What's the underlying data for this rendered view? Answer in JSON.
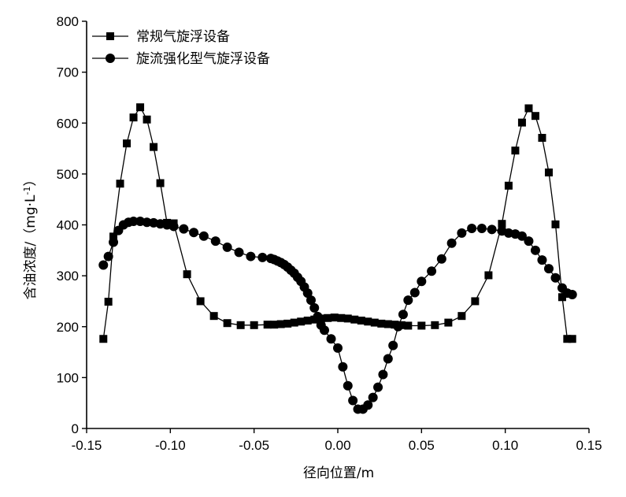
{
  "chart_data": {
    "type": "line",
    "xlabel": "径向位置/m",
    "ylabel": "含油浓度/（mg·L",
    "ylabel_sup": "-1",
    "ylabel_close": "）",
    "xlim": [
      -0.15,
      0.15
    ],
    "ylim": [
      0,
      800
    ],
    "x_ticks": [
      -0.15,
      -0.1,
      -0.05,
      0.0,
      0.05,
      0.1,
      0.15
    ],
    "x_tick_labels": [
      "-0.15",
      "-0.10",
      "-0.05",
      "0.00",
      "0.05",
      "0.10",
      "0.15"
    ],
    "y_ticks": [
      0,
      100,
      200,
      300,
      400,
      500,
      600,
      700,
      800
    ],
    "y_tick_labels": [
      "0",
      "100",
      "200",
      "300",
      "400",
      "500",
      "600",
      "700",
      "800"
    ],
    "grid": false,
    "legend_position": "top-left",
    "series": [
      {
        "name": "常规气旋浮设备",
        "marker": "square",
        "x": [
          -0.14,
          -0.137,
          -0.134,
          -0.13,
          -0.126,
          -0.122,
          -0.118,
          -0.114,
          -0.11,
          -0.106,
          -0.102,
          -0.098,
          -0.09,
          -0.082,
          -0.074,
          -0.066,
          -0.058,
          -0.05,
          -0.042,
          -0.038,
          -0.034,
          -0.03,
          -0.026,
          -0.022,
          -0.018,
          -0.014,
          -0.01,
          -0.006,
          -0.002,
          0.002,
          0.006,
          0.01,
          0.014,
          0.018,
          0.022,
          0.026,
          0.03,
          0.034,
          0.038,
          0.042,
          0.05,
          0.058,
          0.066,
          0.074,
          0.082,
          0.09,
          0.098,
          0.102,
          0.106,
          0.11,
          0.114,
          0.118,
          0.122,
          0.126,
          0.13,
          0.134,
          0.137,
          0.14
        ],
        "values": [
          176,
          249,
          377,
          481,
          560,
          611,
          631,
          607,
          553,
          482,
          404,
          403,
          303,
          250,
          221,
          207,
          203,
          203,
          204,
          204,
          205,
          206,
          208,
          210,
          212,
          214,
          216,
          217,
          218,
          217,
          216,
          214,
          212,
          210,
          208,
          206,
          205,
          204,
          203,
          202,
          202,
          203,
          208,
          221,
          250,
          301,
          402,
          477,
          546,
          601,
          629,
          614,
          571,
          503,
          401,
          258,
          176,
          176
        ]
      },
      {
        "name": "旋流强化型气旋浮设备",
        "marker": "circle",
        "x": [
          -0.14,
          -0.137,
          -0.134,
          -0.131,
          -0.128,
          -0.125,
          -0.122,
          -0.118,
          -0.114,
          -0.11,
          -0.106,
          -0.102,
          -0.098,
          -0.092,
          -0.086,
          -0.08,
          -0.073,
          -0.066,
          -0.059,
          -0.052,
          -0.045,
          -0.04,
          -0.038,
          -0.036,
          -0.034,
          -0.032,
          -0.03,
          -0.028,
          -0.026,
          -0.024,
          -0.022,
          -0.02,
          -0.018,
          -0.016,
          -0.014,
          -0.012,
          -0.01,
          -0.008,
          -0.004,
          0.0,
          0.003,
          0.006,
          0.009,
          0.012,
          0.015,
          0.018,
          0.021,
          0.024,
          0.027,
          0.03,
          0.033,
          0.036,
          0.039,
          0.042,
          0.046,
          0.05,
          0.056,
          0.062,
          0.068,
          0.074,
          0.08,
          0.086,
          0.092,
          0.098,
          0.102,
          0.106,
          0.11,
          0.114,
          0.118,
          0.122,
          0.126,
          0.13,
          0.134,
          0.137,
          0.14
        ],
        "values": [
          321,
          338,
          366,
          389,
          400,
          405,
          407,
          407,
          405,
          404,
          402,
          400,
          397,
          392,
          385,
          378,
          368,
          356,
          346,
          338,
          336,
          334,
          332,
          329,
          326,
          322,
          317,
          311,
          305,
          297,
          289,
          278,
          266,
          252,
          237,
          220,
          203,
          193,
          176,
          158,
          121,
          84,
          55,
          38,
          38,
          46,
          61,
          81,
          106,
          137,
          163,
          200,
          224,
          252,
          267,
          289,
          309,
          333,
          364,
          384,
          393,
          393,
          391,
          388,
          384,
          382,
          378,
          368,
          350,
          331,
          314,
          296,
          276,
          266,
          263
        ]
      }
    ]
  }
}
